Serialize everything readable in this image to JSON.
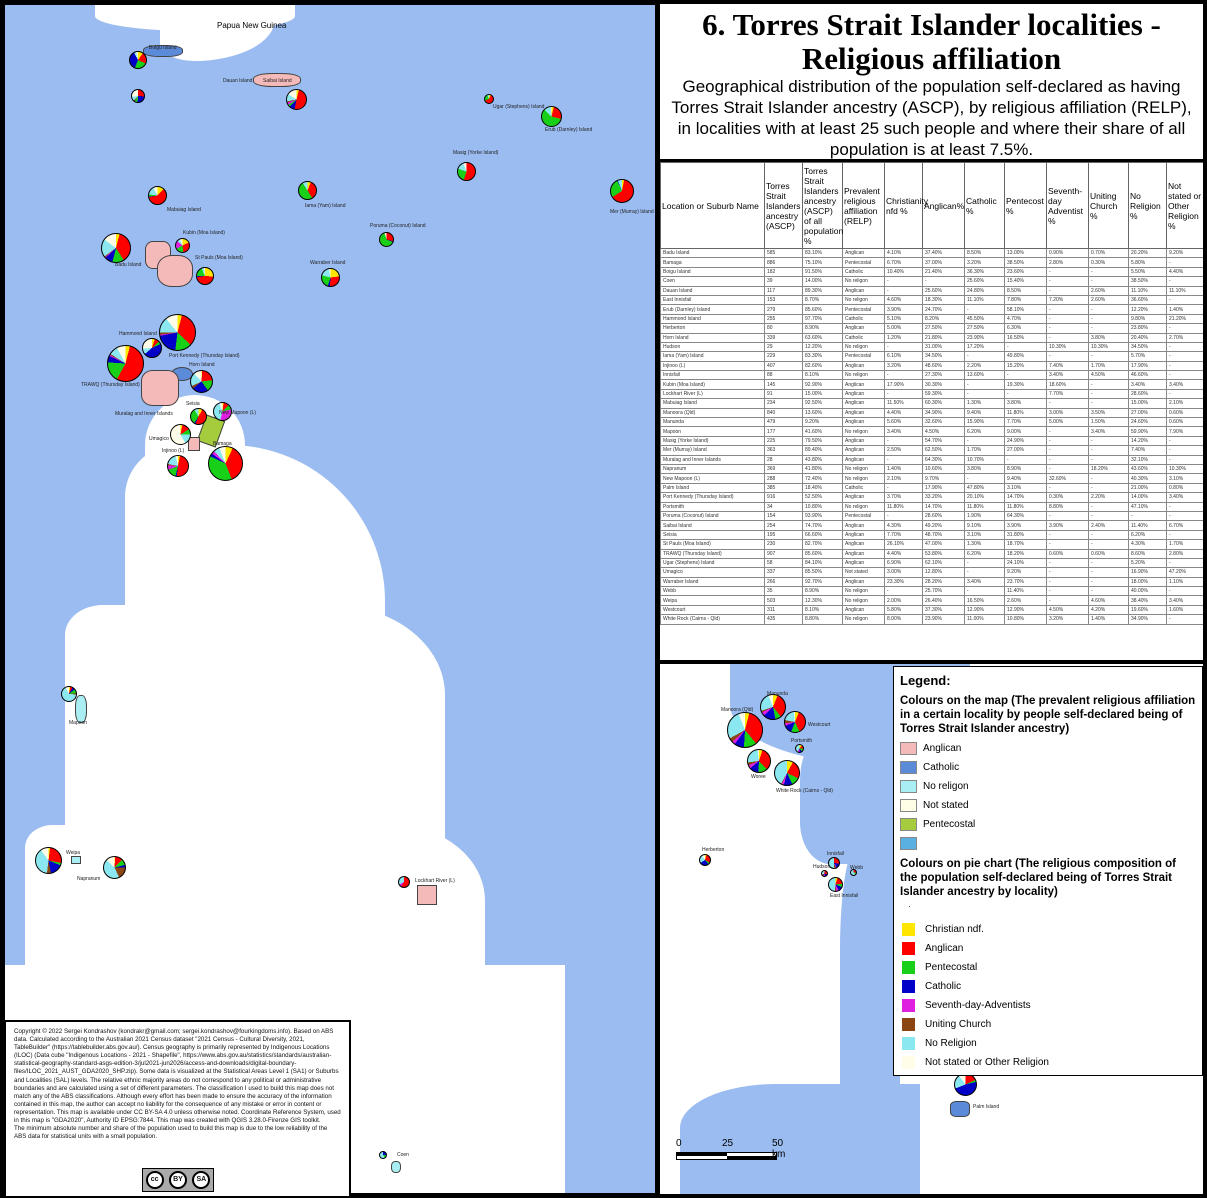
{
  "title": {
    "heading": "6. Torres Strait Islander localities - Religious affiliation",
    "subtitle": "Geographical distribution of the population self-declared as having Torres Strait Islander ancestry (ASCP), by religious affiliation (RELP), in localities with at least 25 such people and where their share of all population is at least 7.5%."
  },
  "colors": {
    "sea": "#9bbcf0",
    "land": "#ffffff",
    "map_anglican": "#f4b9b9",
    "map_catholic": "#5b8bd8",
    "map_no_religion": "#a8eef2",
    "map_not_stated": "#fefde6",
    "map_pentecostal": "#a4cc3c",
    "map_other": "#5ab0e0",
    "pie_christian_ndf": "#ffe600",
    "pie_anglican": "#ff0000",
    "pie_pentecostal": "#18d018",
    "pie_catholic": "#0000c8",
    "pie_sda": "#e020e0",
    "pie_uniting": "#8b4513",
    "pie_no_religion": "#8ce8f0",
    "pie_not_stated": "#fffde8"
  },
  "map_labels": {
    "country": "Papua New Guinea",
    "places": [
      "Boigu Island",
      "Dauan Island",
      "Saibai Island",
      "Ugar (Stephens) Island",
      "Erub (Darnley) Island",
      "Masig (Yorke Island)",
      "Mer (Murray) Island",
      "Iama (Yam) Island",
      "Poruma (Coconut) Island",
      "Warraber Island",
      "Mabuiag Island",
      "Kubin (Moa Island)",
      "St Pauls (Moa Island)",
      "Badu Island",
      "Hammond Island",
      "Port Kennedy (Thursday Island)",
      "Horn Island",
      "TRAWQ (Thursday Island)",
      "Muralag and Inner Islands",
      "Seisia",
      "New Mapoon (L)",
      "Umagico",
      "Injinoo (L)",
      "Bamaga",
      "Mapoon",
      "Weipa",
      "Napranum",
      "Lockhart River (L)",
      "Coen"
    ]
  },
  "inset_labels": [
    "Manunda",
    "Manoora (Qld)",
    "Westcourt",
    "Portsmith",
    "Woree",
    "White Rock (Cairns - Qld)",
    "Herberton",
    "Innisfail",
    "Hudson",
    "Webb",
    "East Innisfail",
    "Palm Island"
  ],
  "table": {
    "headers": [
      "Location or Suburb Name",
      "Torres Strait Islanders ancestry (ASCP)",
      "Torres Strait Islanders ancestry (ASCP) of all population %",
      "Prevalent religious affiliation (RELP)",
      "Christianity nfd %",
      "Anglican%",
      "Catholic %",
      "Pentecost %",
      "Seventh-day Adventist %",
      "Uniting Church %",
      "No Religion %",
      "Not stated or Other Religion %"
    ],
    "rows": [
      [
        "Badu Island",
        "585",
        "83.10%",
        "Anglican",
        "4.10%",
        "37.40%",
        "8.50%",
        "13.00%",
        "0.90%",
        "0.70%",
        "20.20%",
        "9.20%"
      ],
      [
        "Bamaga",
        "886",
        "75.10%",
        "Pentecostal",
        "6.70%",
        "37.00%",
        "3.20%",
        "38.50%",
        "2.80%",
        "0.30%",
        "5.80%",
        "-"
      ],
      [
        "Boigu Island",
        "182",
        "91.50%",
        "Catholic",
        "10.40%",
        "21.40%",
        "36.30%",
        "23.60%",
        "-",
        "-",
        "5.50%",
        "4.40%"
      ],
      [
        "Coen",
        "39",
        "14.00%",
        "No religon",
        "-",
        "-",
        "25.60%",
        "15.40%",
        "-",
        "-",
        "38.50%",
        "-"
      ],
      [
        "Dauan Island",
        "117",
        "89.30%",
        "Anglican",
        "-",
        "25.60%",
        "24.80%",
        "8.50%",
        "-",
        "2.60%",
        "11.10%",
        "11.10%"
      ],
      [
        "East Innisfail",
        "153",
        "8.70%",
        "No religon",
        "4.60%",
        "18.30%",
        "11.10%",
        "7.80%",
        "7.20%",
        "2.60%",
        "36.60%",
        "-"
      ],
      [
        "Erub (Darnley) Island",
        "279",
        "85.60%",
        "Pentecostal",
        "3.90%",
        "24.70%",
        "-",
        "58.10%",
        "-",
        "-",
        "12.20%",
        "1.40%"
      ],
      [
        "Hammond Island",
        "255",
        "97.70%",
        "Catholic",
        "5.10%",
        "8.20%",
        "45.50%",
        "4.70%",
        "-",
        "-",
        "9.80%",
        "21.20%"
      ],
      [
        "Herberton",
        "80",
        "8.90%",
        "Anglican",
        "5.00%",
        "27.50%",
        "27.50%",
        "6.30%",
        "-",
        "-",
        "23.80%",
        "-"
      ],
      [
        "Horn Island",
        "339",
        "63.60%",
        "Catholic",
        "1.20%",
        "21.80%",
        "23.90%",
        "16.50%",
        "-",
        "3.80%",
        "20.40%",
        "2.70%"
      ],
      [
        "Hudson",
        "29",
        "12.20%",
        "No religon",
        "-",
        "31.00%",
        "17.20%",
        "-",
        "10.30%",
        "10.30%",
        "34.50%",
        "-"
      ],
      [
        "Iama (Yam) Island",
        "229",
        "83.30%",
        "Pentecostal",
        "6.10%",
        "34.50%",
        "-",
        "49.80%",
        "-",
        "-",
        "5.70%",
        "-"
      ],
      [
        "Injinoo (L)",
        "407",
        "82.60%",
        "Anglican",
        "3.20%",
        "48.60%",
        "2.20%",
        "15.20%",
        "7.40%",
        "1.70%",
        "17.90%",
        "-"
      ],
      [
        "Innisfail",
        "88",
        "8.10%",
        "No religon",
        "-",
        "27.30%",
        "13.60%",
        "-",
        "3.40%",
        "4.50%",
        "46.60%",
        "-"
      ],
      [
        "Kubin (Moa Island)",
        "145",
        "92.90%",
        "Anglican",
        "17.90%",
        "30.30%",
        "-",
        "19.30%",
        "18.60%",
        "-",
        "3.40%",
        "3.40%"
      ],
      [
        "Lockhart River (L)",
        "91",
        "15.00%",
        "Anglican",
        "-",
        "59.30%",
        "-",
        "-",
        "7.70%",
        "-",
        "28.60%",
        "-"
      ],
      [
        "Mabuiag Island",
        "234",
        "92.50%",
        "Anglican",
        "11.50%",
        "60.30%",
        "1.30%",
        "3.80%",
        "-",
        "-",
        "15.00%",
        "2.10%"
      ],
      [
        "Manoora (Qld)",
        "840",
        "13.60%",
        "Anglican",
        "4.40%",
        "34.90%",
        "9.40%",
        "11.80%",
        "3.00%",
        "3.50%",
        "27.00%",
        "0.60%"
      ],
      [
        "Manunda",
        "479",
        "9.20%",
        "Anglican",
        "5.60%",
        "32.60%",
        "15.90%",
        "7.70%",
        "5.00%",
        "1.50%",
        "24.60%",
        "0.60%"
      ],
      [
        "Mapoon",
        "177",
        "41.60%",
        "No religon",
        "3.40%",
        "4.50%",
        "6.20%",
        "9.00%",
        "-",
        "3.40%",
        "59.90%",
        "7.90%"
      ],
      [
        "Masig (Yorke Island)",
        "225",
        "79.50%",
        "Anglican",
        "-",
        "54.70%",
        "-",
        "24.90%",
        "-",
        "-",
        "14.20%",
        "-"
      ],
      [
        "Mer (Murray) Island",
        "363",
        "89.40%",
        "Anglican",
        "2.50%",
        "62.50%",
        "1.70%",
        "27.00%",
        "-",
        "-",
        "7.40%",
        "-"
      ],
      [
        "Muralag and Inner Islands",
        "28",
        "43.80%",
        "Anglican",
        "-",
        "64.30%",
        "10.70%",
        "-",
        "-",
        "-",
        "32.10%",
        "-"
      ],
      [
        "Napranum",
        "369",
        "41.80%",
        "No religon",
        "1.40%",
        "10.60%",
        "3.80%",
        "8.90%",
        "-",
        "18.20%",
        "43.60%",
        "10.30%"
      ],
      [
        "New Mapoon (L)",
        "288",
        "72.40%",
        "No religon",
        "2.10%",
        "9.70%",
        "-",
        "9.40%",
        "32.60%",
        "-",
        "40.30%",
        "3.10%"
      ],
      [
        "Palm Island",
        "385",
        "18.40%",
        "Catholic",
        "-",
        "17.90%",
        "47.80%",
        "3.10%",
        "-",
        "-",
        "21.00%",
        "0.80%"
      ],
      [
        "Port Kennedy (Thursday Island)",
        "916",
        "52.50%",
        "Anglican",
        "3.70%",
        "33.20%",
        "20.10%",
        "14.70%",
        "0.30%",
        "2.20%",
        "14.00%",
        "3.40%"
      ],
      [
        "Portsmith",
        "34",
        "10.80%",
        "No religon",
        "11.80%",
        "14.70%",
        "11.80%",
        "11.80%",
        "8.80%",
        "-",
        "47.10%",
        "-"
      ],
      [
        "Poruma (Coconut) Island",
        "154",
        "93.90%",
        "Pentecostal",
        "-",
        "28.60%",
        "1.90%",
        "64.30%",
        "-",
        "-",
        "-",
        "-"
      ],
      [
        "Saibai Island",
        "254",
        "74.70%",
        "Anglican",
        "4.30%",
        "49.20%",
        "9.10%",
        "3.90%",
        "3.90%",
        "2.40%",
        "11.40%",
        "6.70%"
      ],
      [
        "Seisia",
        "195",
        "66.60%",
        "Anglican",
        "7.70%",
        "48.70%",
        "3.10%",
        "31.80%",
        "-",
        "-",
        "6.20%",
        "-"
      ],
      [
        "St Pauls (Moa Island)",
        "230",
        "82.70%",
        "Anglican",
        "26.10%",
        "47.00%",
        "1.30%",
        "18.70%",
        "-",
        "-",
        "4.30%",
        "1.70%"
      ],
      [
        "TRAWQ (Thursday Island)",
        "907",
        "85.60%",
        "Anglican",
        "4.40%",
        "53.80%",
        "6.20%",
        "18.20%",
        "0.60%",
        "0.60%",
        "8.60%",
        "2.80%"
      ],
      [
        "Ugar (Stephens) Island",
        "58",
        "84.10%",
        "Anglican",
        "6.90%",
        "62.10%",
        "-",
        "24.10%",
        "-",
        "-",
        "5.20%",
        "-"
      ],
      [
        "Umagico",
        "337",
        "85.50%",
        "Not stated",
        "3.00%",
        "12.80%",
        "-",
        "9.20%",
        "-",
        "-",
        "16.90%",
        "47.20%"
      ],
      [
        "Warraber Island",
        "266",
        "92.70%",
        "Anglican",
        "23.30%",
        "28.20%",
        "3.40%",
        "23.70%",
        "-",
        "-",
        "18.00%",
        "1.10%"
      ],
      [
        "Webb",
        "35",
        "8.90%",
        "No religon",
        "-",
        "25.70%",
        "-",
        "11.40%",
        "-",
        "-",
        "40.00%",
        "-"
      ],
      [
        "Weipa",
        "503",
        "12.30%",
        "No religon",
        "2.00%",
        "26.40%",
        "16.50%",
        "2.60%",
        "-",
        "4.60%",
        "38.40%",
        "3.40%"
      ],
      [
        "Westcourt",
        "311",
        "8.10%",
        "Anglican",
        "5.80%",
        "37.30%",
        "12.90%",
        "12.90%",
        "4.50%",
        "4.20%",
        "19.60%",
        "1.60%"
      ],
      [
        "White Rock (Cairns - Qld)",
        "435",
        "8.80%",
        "No religon",
        "8.00%",
        "23.90%",
        "11.00%",
        "10.80%",
        "3.20%",
        "1.40%",
        "34.90%",
        "-"
      ]
    ]
  },
  "legend": {
    "title": "Legend:",
    "map_section_title": "Colours on the map (The prevalent religious affiliation in a certain locality by people self-declared being of Torres Strait Islander ancestry)",
    "map_items": [
      {
        "label": "Anglican",
        "color": "#f4b9b9"
      },
      {
        "label": "Catholic",
        "color": "#5b8bd8"
      },
      {
        "label": "No religon",
        "color": "#a8eef2"
      },
      {
        "label": "Not stated",
        "color": "#fefde6"
      },
      {
        "label": "Pentecostal",
        "color": "#a4cc3c"
      },
      {
        "label": "",
        "color": "#5ab0e0"
      }
    ],
    "pie_section_title": "Colours on pie chart (The religious composition of the population self-declared being of Torres Strait Islander ancestry by locality)",
    "pie_items": [
      {
        "label": "Christian ndf.",
        "color": "#ffe600"
      },
      {
        "label": "Anglican",
        "color": "#ff0000"
      },
      {
        "label": "Pentecostal",
        "color": "#18d018"
      },
      {
        "label": "Catholic",
        "color": "#0000c8"
      },
      {
        "label": "Seventh-day-Adventists",
        "color": "#e020e0"
      },
      {
        "label": "Uniting Church",
        "color": "#8b4513"
      },
      {
        "label": "No Religion",
        "color": "#8ce8f0"
      },
      {
        "label": "Not stated or Other Religion",
        "color": "#fffde8"
      }
    ]
  },
  "scale": {
    "labels": [
      "0",
      "25",
      "50 km"
    ]
  },
  "copyright": {
    "text": "Copyright © 2022 Sergei Kondrashov (kondrakr@gmail.com; sergei.kondrashov@fourkingdoms.info). Based on ABS data. Calculated according to the Australian 2021 Census dataset \"2021 Census - Cultural Diversity, 2021, TableBuilder\" (https://tablebuilder.abs.gov.au/). Census geography is primarily represented by Indigenous Locations (ILOC) (Data cube \"Indigenous Locations - 2021 - Shapefile\", https://www.abs.gov.au/statistics/standards/australian-statistical-geography-standard-asgs-edition-3/jul2021-jun2026/access-and-downloads/digital-boundary-files/ILOC_2021_AUST_GDA2020_SHP.zip). Some data is visualized at the Statistical Areas Level 1 (SA1) or Suburbs and Localities (SAL) levels. The relative ethnic majority areas do not correspond to any political or administrative boundaries and are calculated using a set of different parameters. The classification I used to build this map does not match any of the ABS classifications. Although every effort has been made to ensure the accuracy of the information contained in this map, the author can accept no liability for the consequence of any mistake or error in content or representation. This map is available under CC BY-SA 4.0 unless otherwise noted. Coordinate Reference System, used in this map is \"GDA2020\", Authority ID EPSG:7844. This map was created with QGIS 3.28.0-Firenze GIS toolkit.",
    "note": "The minimum absolute number and share of the population used to build this map is due to the low reliability of the ABS data for statistical units with a small population.",
    "license_badge": {
      "cc": "cc",
      "by": "BY",
      "sa": "SA"
    }
  }
}
